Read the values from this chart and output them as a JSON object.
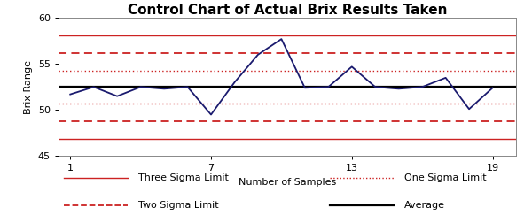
{
  "title": "Control Chart of Actual Brix Results Taken",
  "xlabel": "Number of Samples",
  "ylabel": "Brix Range",
  "xlim": [
    0.5,
    20
  ],
  "ylim": [
    45,
    60
  ],
  "yticks": [
    45,
    50,
    55,
    60
  ],
  "xtick_positions": [
    1,
    7,
    13,
    19
  ],
  "xtick_labels": [
    "1",
    "7",
    "13",
    "19"
  ],
  "data_x": [
    1,
    2,
    3,
    4,
    5,
    6,
    7,
    8,
    9,
    10,
    11,
    12,
    13,
    14,
    15,
    16,
    17,
    18,
    19
  ],
  "data_y": [
    51.7,
    52.5,
    51.5,
    52.5,
    52.3,
    52.5,
    49.5,
    53.0,
    56.0,
    57.7,
    52.4,
    52.5,
    54.7,
    52.5,
    52.3,
    52.5,
    53.5,
    50.1,
    52.4
  ],
  "average": 52.5,
  "one_sigma_upper": 54.3,
  "one_sigma_lower": 50.7,
  "two_sigma_upper": 56.2,
  "two_sigma_lower": 48.8,
  "three_sigma_upper": 58.1,
  "three_sigma_lower": 46.9,
  "line_color": "#1a1a6e",
  "avg_color": "#000000",
  "sigma_color": "#cc2222",
  "bg_color": "#ffffff",
  "title_fontsize": 11,
  "label_fontsize": 8,
  "tick_fontsize": 8,
  "legend_fontsize": 8
}
